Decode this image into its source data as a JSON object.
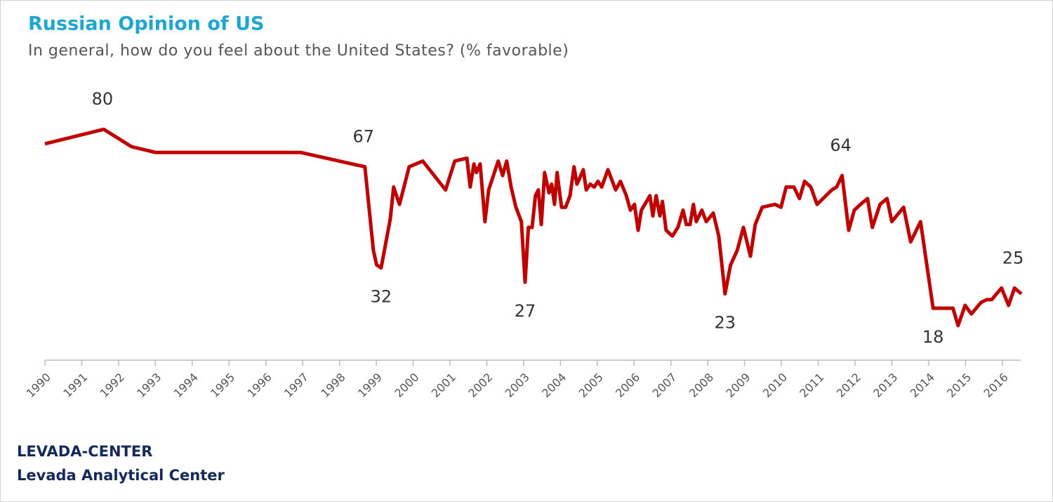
{
  "chart_data": {
    "type": "line",
    "title": "Russian Opinion of US",
    "subtitle": "In general, how do you feel about the United States? (% favorable)",
    "source": "LEVADA-CENTER",
    "source_detail": "Levada Analytical Center",
    "xlim": [
      1990,
      2016.5
    ],
    "xticks": [
      1990,
      1991,
      1992,
      1993,
      1994,
      1995,
      1996,
      1997,
      1998,
      1999,
      2000,
      2001,
      2002,
      2003,
      2004,
      2005,
      2006,
      2007,
      2008,
      2009,
      2010,
      2011,
      2012,
      2013,
      2014,
      2015,
      2016
    ],
    "ylim": [
      0,
      100
    ],
    "series": [
      {
        "name": "Favorable",
        "color": "#c00000",
        "x": [
          1990,
          1991.6,
          1992.35,
          1993.0,
          1996.94,
          1998.69,
          1998.92,
          1999.01,
          1999.13,
          1999.38,
          1999.47,
          1999.63,
          1999.89,
          2000.26,
          2000.88,
          2001.13,
          2001.46,
          2001.55,
          2001.65,
          2001.72,
          2001.82,
          2001.95,
          2002.05,
          2002.31,
          2002.43,
          2002.54,
          2002.66,
          2002.79,
          2002.94,
          2003.04,
          2003.13,
          2003.23,
          2003.32,
          2003.4,
          2003.48,
          2003.57,
          2003.69,
          2003.76,
          2003.84,
          2003.91,
          2004.03,
          2004.14,
          2004.26,
          2004.37,
          2004.45,
          2004.52,
          2004.62,
          2004.7,
          2004.81,
          2004.92,
          2005.02,
          2005.12,
          2005.29,
          2005.5,
          2005.63,
          2005.79,
          2005.9,
          2006.01,
          2006.11,
          2006.2,
          2006.43,
          2006.51,
          2006.6,
          2006.7,
          2006.77,
          2006.87,
          2007.04,
          2007.19,
          2007.33,
          2007.42,
          2007.52,
          2007.61,
          2007.69,
          2007.84,
          2007.96,
          2008.15,
          2008.3,
          2008.47,
          2008.62,
          2008.8,
          2008.97,
          2009.16,
          2009.29,
          2009.48,
          2009.83,
          2009.99,
          2010.13,
          2010.34,
          2010.49,
          2010.63,
          2010.8,
          2010.97,
          2011.37,
          2011.5,
          2011.65,
          2011.83,
          2011.98,
          2012.15,
          2012.34,
          2012.47,
          2012.68,
          2012.87,
          2013.0,
          2013.32,
          2013.51,
          2013.78,
          2014.12,
          2014.32,
          2014.55,
          2014.66,
          2014.8,
          2014.99,
          2015.16,
          2015.42,
          2015.58,
          2015.71,
          2015.98,
          2016.17,
          2016.33,
          2016.52
        ],
        "values": [
          75,
          80,
          74,
          72,
          72,
          67,
          38,
          33,
          32,
          49,
          60,
          54,
          67,
          69,
          59,
          69,
          70,
          60,
          68,
          65,
          68,
          48,
          59,
          69,
          64,
          69,
          60,
          53,
          48,
          27,
          46,
          46,
          57,
          59,
          47,
          65,
          58,
          61,
          54,
          65,
          53,
          53,
          57,
          67,
          61,
          63,
          66,
          59,
          61,
          60,
          62,
          60,
          66,
          59,
          62,
          57,
          52,
          54,
          45,
          52,
          57,
          50,
          57,
          50,
          55,
          45,
          43,
          46,
          52,
          47,
          47,
          54,
          48,
          52,
          48,
          51,
          43,
          23,
          33,
          38,
          46,
          36,
          47,
          53,
          54,
          53,
          60,
          60,
          56,
          62,
          60,
          54,
          59,
          60,
          64,
          45,
          52,
          54,
          56,
          46,
          54,
          56,
          48,
          53,
          41,
          48,
          18,
          18,
          18,
          18,
          12,
          19,
          16,
          20,
          21,
          21,
          25,
          19,
          25,
          23
        ],
        "value_labels": [
          null,
          "80",
          null,
          null,
          null,
          "67",
          null,
          null,
          "32",
          null,
          null,
          null,
          null,
          null,
          null,
          null,
          null,
          null,
          null,
          null,
          null,
          null,
          null,
          null,
          null,
          null,
          null,
          null,
          null,
          "27",
          null,
          null,
          null,
          null,
          null,
          null,
          null,
          null,
          null,
          null,
          null,
          null,
          null,
          null,
          null,
          null,
          null,
          null,
          null,
          null,
          null,
          null,
          null,
          null,
          null,
          null,
          null,
          null,
          null,
          null,
          null,
          null,
          null,
          null,
          null,
          null,
          null,
          null,
          null,
          null,
          null,
          null,
          null,
          null,
          null,
          null,
          null,
          "23",
          null,
          null,
          null,
          null,
          null,
          null,
          null,
          null,
          null,
          null,
          null,
          null,
          null,
          null,
          null,
          null,
          "64",
          null,
          null,
          null,
          null,
          null,
          null,
          null,
          null,
          null,
          null,
          null,
          "18",
          null,
          null,
          null,
          null,
          null,
          null,
          null,
          null,
          null,
          null,
          null,
          "25",
          null
        ]
      }
    ]
  }
}
